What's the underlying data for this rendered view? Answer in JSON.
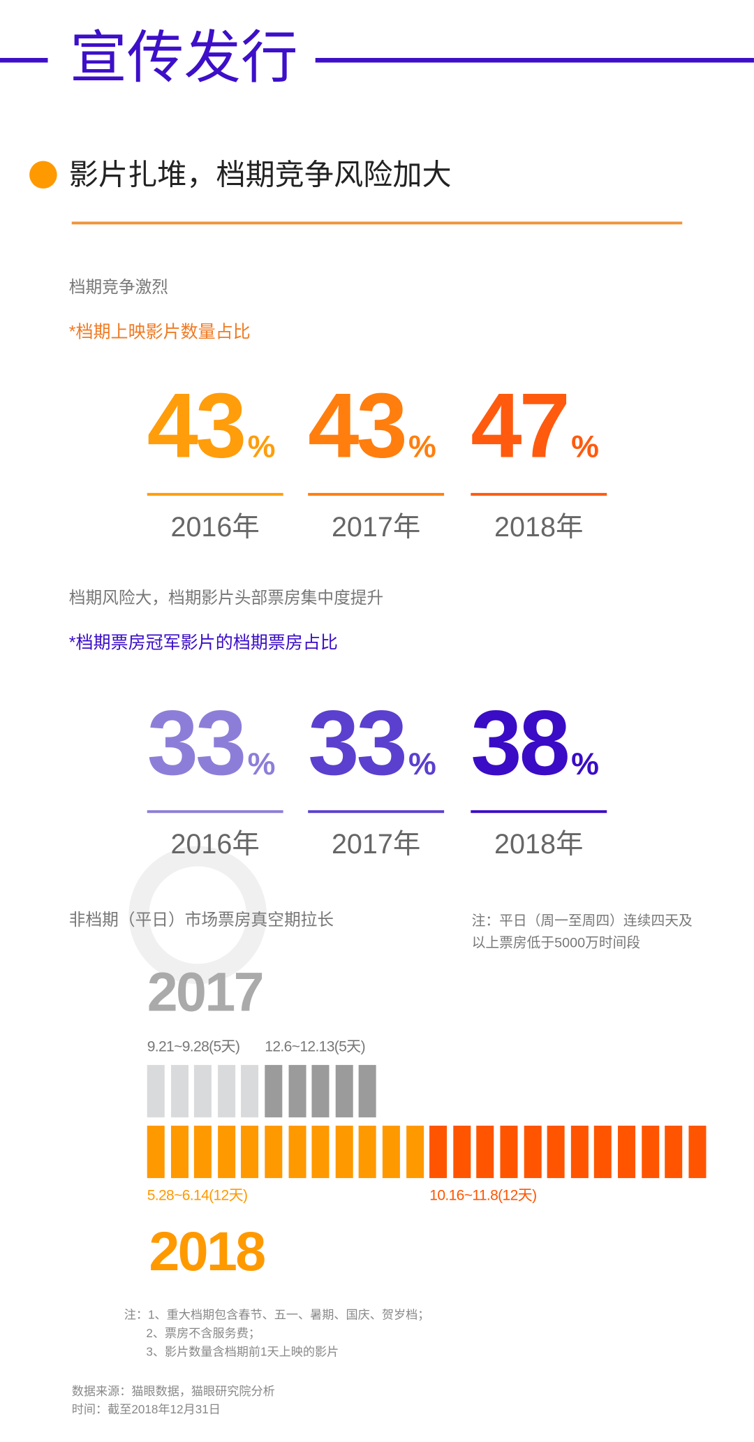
{
  "header": {
    "title": "宣传发行",
    "accent": "#3d0fc8"
  },
  "section": {
    "subtitle": "影片扎堆，档期竞争风险加大",
    "bullet_color": "#ff9900"
  },
  "block1": {
    "label": "档期竞争激烈",
    "note": "*档期上映影片数量占比",
    "stats": [
      {
        "value": "43",
        "unit": "%",
        "year": "2016年",
        "color": "#ff9d0a"
      },
      {
        "value": "43",
        "unit": "%",
        "year": "2017年",
        "color": "#ff7e0e"
      },
      {
        "value": "47",
        "unit": "%",
        "year": "2018年",
        "color": "#ff5a0e"
      }
    ]
  },
  "block2": {
    "label": "档期风险大，档期影片头部票房集中度提升",
    "note": "*档期票房冠军影片的档期票房占比",
    "stats": [
      {
        "value": "33",
        "unit": "%",
        "year": "2016年",
        "color": "#8c7ed8"
      },
      {
        "value": "33",
        "unit": "%",
        "year": "2017年",
        "color": "#5b3fcf"
      },
      {
        "value": "38",
        "unit": "%",
        "year": "2018年",
        "color": "#3a0cc6"
      }
    ]
  },
  "block3": {
    "label": "非档期（平日）市场票房真空期拉长",
    "side_note_1": "注：平日（周一至周四）连续四天及",
    "side_note_2": "以上票房低于5000万时间段",
    "year_2017": "2017",
    "year_2018": "2018",
    "periods_2017": [
      {
        "label": "9.21~9.28(5天)",
        "days": 5,
        "color": "#d9dadb"
      },
      {
        "label": "12.6~12.13(5天)",
        "days": 5,
        "color": "#9b9b9b"
      }
    ],
    "periods_2018": [
      {
        "label": "5.28~6.14(12天)",
        "days": 12,
        "color": "#ff9900"
      },
      {
        "label": "10.16~11.8(12天)",
        "days": 12,
        "color": "#ff5500"
      }
    ]
  },
  "notes": [
    "注：1、重大档期包含春节、五一、暑期、国庆、贺岁档；",
    "2、票房不含服务费；",
    "3、影片数量含档期前1天上映的影片"
  ],
  "source": "数据来源：猫眼数据，猫眼研究院分析",
  "time": "时间：截至2018年12月31日",
  "watermark": "猫眼研究院"
}
